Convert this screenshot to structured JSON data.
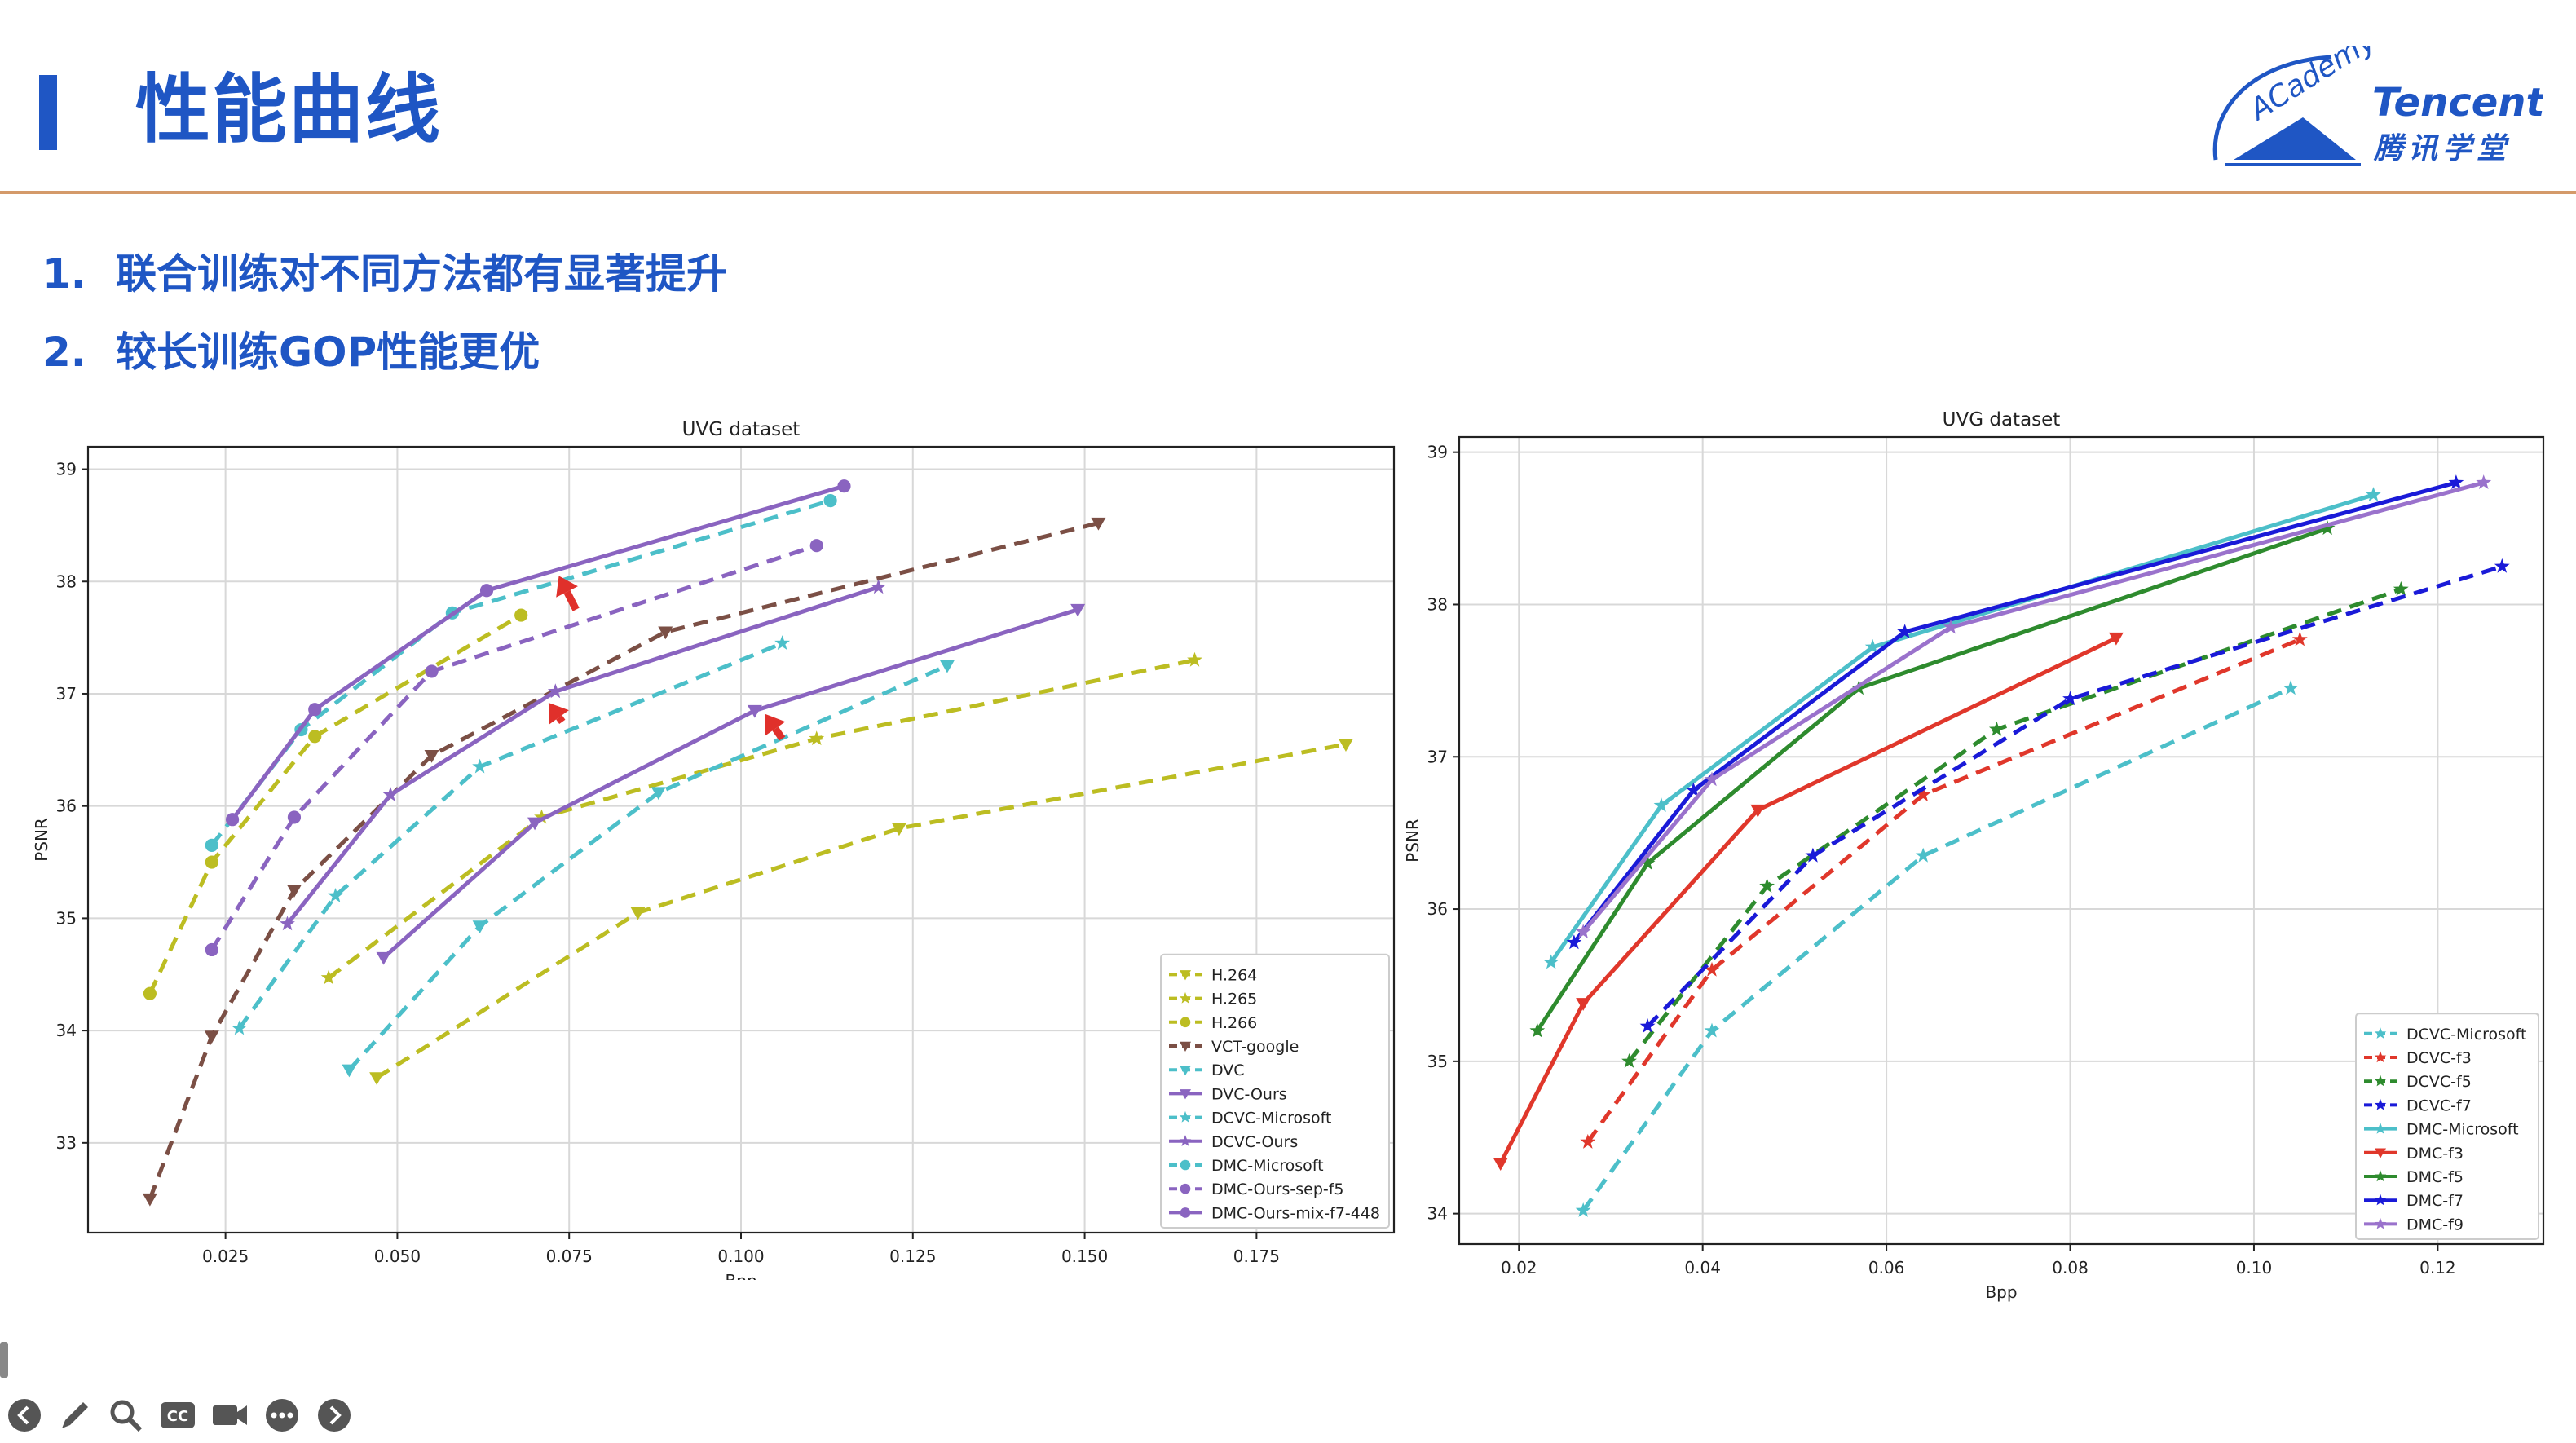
{
  "slide": {
    "title": "性能曲线",
    "bullets": [
      {
        "num": "1.",
        "text": "联合训练对不同方法都有显著提升"
      },
      {
        "num": "2.",
        "text": "较长训练GOP性能更优"
      }
    ]
  },
  "logo": {
    "academy": "ACademy",
    "brand": "Tencent",
    "subtitle": "腾讯学堂",
    "color": "#1f56c4"
  },
  "toolbar": {
    "icons": [
      "back-icon",
      "pen-icon",
      "search-icon",
      "cc-icon",
      "camera-icon",
      "more-icon",
      "forward-icon"
    ],
    "cc_label": "CC"
  },
  "chart_data": [
    {
      "type": "line",
      "title": "UVG dataset",
      "xlabel": "Bpp",
      "ylabel": "PSNR",
      "xlim": [
        0.005,
        0.195
      ],
      "ylim": [
        32.2,
        39.2
      ],
      "xticks": [
        0.025,
        0.05,
        0.075,
        0.1,
        0.125,
        0.15,
        0.175
      ],
      "xtick_labels": [
        "0.025",
        "0.050",
        "0.075",
        "0.100",
        "0.125",
        "0.150",
        "0.175"
      ],
      "yticks": [
        33,
        34,
        35,
        36,
        37,
        38,
        39
      ],
      "ytick_labels": [
        "33",
        "34",
        "35",
        "36",
        "37",
        "38",
        "39"
      ],
      "grid": true,
      "legend": "lower-right",
      "series": [
        {
          "name": "H.264",
          "color": "#bcbd22",
          "dash": true,
          "marker": "tri_down",
          "x": [
            0.047,
            0.085,
            0.123,
            0.188
          ],
          "y": [
            33.58,
            35.05,
            35.8,
            36.55
          ]
        },
        {
          "name": "H.265",
          "color": "#bcbd22",
          "dash": true,
          "marker": "star",
          "x": [
            0.04,
            0.071,
            0.111,
            0.166
          ],
          "y": [
            34.47,
            35.9,
            36.6,
            37.3
          ]
        },
        {
          "name": "H.266",
          "color": "#bcbd22",
          "dash": true,
          "marker": "circle",
          "x": [
            0.014,
            0.023,
            0.038,
            0.068
          ],
          "y": [
            34.33,
            35.5,
            36.62,
            37.7
          ]
        },
        {
          "name": "VCT-google",
          "color": "#7b4f45",
          "dash": true,
          "marker": "tri_down",
          "x": [
            0.014,
            0.023,
            0.035,
            0.055,
            0.089,
            0.152
          ],
          "y": [
            32.5,
            33.95,
            35.25,
            36.45,
            37.55,
            38.52
          ]
        },
        {
          "name": "DVC",
          "color": "#4cbfc9",
          "dash": true,
          "marker": "tri_down",
          "x": [
            0.043,
            0.062,
            0.088,
            0.13
          ],
          "y": [
            33.65,
            34.93,
            36.12,
            37.25
          ]
        },
        {
          "name": "DVC-Ours",
          "color": "#8a64c0",
          "dash": false,
          "marker": "tri_down",
          "x": [
            0.048,
            0.07,
            0.102,
            0.149
          ],
          "y": [
            34.65,
            35.85,
            36.85,
            37.75
          ]
        },
        {
          "name": "DCVC-Microsoft",
          "color": "#4cbfc9",
          "dash": true,
          "marker": "star",
          "x": [
            0.027,
            0.041,
            0.062,
            0.106
          ],
          "y": [
            34.02,
            35.2,
            36.35,
            37.45
          ]
        },
        {
          "name": "DCVC-Ours",
          "color": "#8a64c0",
          "dash": false,
          "marker": "star",
          "x": [
            0.034,
            0.049,
            0.073,
            0.12
          ],
          "y": [
            34.95,
            36.1,
            37.02,
            37.95
          ]
        },
        {
          "name": "DMC-Microsoft",
          "color": "#4cbfc9",
          "dash": true,
          "marker": "circle",
          "x": [
            0.023,
            0.036,
            0.058,
            0.113
          ],
          "y": [
            35.65,
            36.68,
            37.72,
            38.72
          ]
        },
        {
          "name": "DMC-Ours-sep-f5",
          "color": "#8a64c0",
          "dash": true,
          "marker": "circle",
          "x": [
            0.023,
            0.035,
            0.055,
            0.111
          ],
          "y": [
            34.72,
            35.9,
            37.2,
            38.32
          ]
        },
        {
          "name": "DMC-Ours-mix-f7-448",
          "color": "#8a64c0",
          "dash": false,
          "marker": "circle",
          "x": [
            0.026,
            0.038,
            0.063,
            0.115
          ],
          "y": [
            35.88,
            36.86,
            37.92,
            38.85
          ]
        }
      ]
    },
    {
      "type": "line",
      "title": "UVG dataset",
      "xlabel": "Bpp",
      "ylabel": "PSNR",
      "xlim": [
        0.0135,
        0.1315
      ],
      "ylim": [
        33.8,
        39.1
      ],
      "xticks": [
        0.02,
        0.04,
        0.06,
        0.08,
        0.1,
        0.12
      ],
      "xtick_labels": [
        "0.02",
        "0.04",
        "0.06",
        "0.08",
        "0.10",
        "0.12"
      ],
      "yticks": [
        34,
        35,
        36,
        37,
        38,
        39
      ],
      "ytick_labels": [
        "34",
        "35",
        "36",
        "37",
        "38",
        "39"
      ],
      "grid": true,
      "legend": "lower-right",
      "series": [
        {
          "name": "DCVC-Microsoft",
          "color": "#4cbfc9",
          "dash": true,
          "marker": "star",
          "x": [
            0.027,
            0.041,
            0.064,
            0.104
          ],
          "y": [
            34.02,
            35.2,
            36.35,
            37.45
          ]
        },
        {
          "name": "DCVC-f3",
          "color": "#e0372b",
          "dash": true,
          "marker": "star",
          "x": [
            0.0275,
            0.041,
            0.064,
            0.105
          ],
          "y": [
            34.47,
            35.6,
            36.75,
            37.77
          ]
        },
        {
          "name": "DCVC-f5",
          "color": "#2e8b2e",
          "dash": true,
          "marker": "star",
          "x": [
            0.032,
            0.047,
            0.072,
            0.116
          ],
          "y": [
            35.0,
            36.15,
            37.18,
            38.1
          ]
        },
        {
          "name": "DCVC-f7",
          "color": "#1a1ad8",
          "dash": true,
          "marker": "star",
          "x": [
            0.034,
            0.052,
            0.08,
            0.127
          ],
          "y": [
            35.23,
            36.35,
            37.38,
            38.25
          ]
        },
        {
          "name": "DMC-Microsoft",
          "color": "#4cbfc9",
          "dash": false,
          "marker": "star",
          "x": [
            0.0235,
            0.0355,
            0.0585,
            0.113
          ],
          "y": [
            35.65,
            36.68,
            37.72,
            38.72
          ]
        },
        {
          "name": "DMC-f3",
          "color": "#e0372b",
          "dash": false,
          "marker": "tri_down",
          "x": [
            0.018,
            0.027,
            0.046,
            0.085
          ],
          "y": [
            34.33,
            35.38,
            36.65,
            37.78
          ]
        },
        {
          "name": "DMC-f5",
          "color": "#2e8b2e",
          "dash": false,
          "marker": "star",
          "x": [
            0.022,
            0.034,
            0.057,
            0.108
          ],
          "y": [
            35.2,
            36.3,
            37.45,
            38.5
          ]
        },
        {
          "name": "DMC-f7",
          "color": "#1a1ad8",
          "dash": false,
          "marker": "star",
          "x": [
            0.026,
            0.039,
            0.062,
            0.122
          ],
          "y": [
            35.78,
            36.78,
            37.82,
            38.8
          ]
        },
        {
          "name": "DMC-f9",
          "color": "#9a72cc",
          "dash": false,
          "marker": "star",
          "x": [
            0.027,
            0.041,
            0.067,
            0.125
          ],
          "y": [
            35.85,
            36.85,
            37.85,
            38.8
          ]
        }
      ]
    }
  ],
  "annotations": {
    "arrow_color": "#e0302b",
    "arrows": [
      {
        "x": 0.0735,
        "y": 38.05,
        "from_x": 0.076,
        "from_y": 37.75
      },
      {
        "x": 0.072,
        "y": 36.92,
        "from_x": 0.074,
        "from_y": 36.75
      },
      {
        "x": 0.1035,
        "y": 36.82,
        "from_x": 0.106,
        "from_y": 36.6
      }
    ]
  }
}
